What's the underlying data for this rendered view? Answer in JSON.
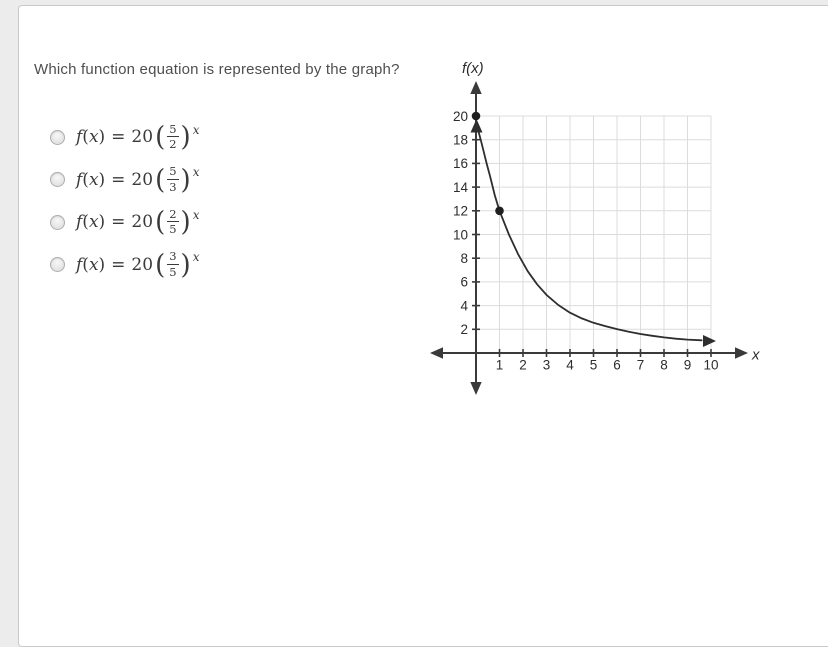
{
  "page": {
    "background_color": "#ececec",
    "card_background": "#ffffff",
    "card_border_color": "#c9c9c9"
  },
  "question": {
    "text": "Which function equation is represented by the graph?"
  },
  "equation_shared": {
    "f": "f",
    "open_paren": "(",
    "variable": "x",
    "close_paren": ")",
    "equals": "=",
    "coefficient": "20"
  },
  "options": [
    {
      "numerator": "5",
      "denominator": "2",
      "exponent": "x",
      "text": "f(x) = 20(5/2)^x",
      "selected": false
    },
    {
      "numerator": "5",
      "denominator": "3",
      "exponent": "x",
      "text": "f(x) = 20(5/3)^x",
      "selected": false
    },
    {
      "numerator": "2",
      "denominator": "5",
      "exponent": "x",
      "text": "f(x) = 20(2/5)^x",
      "selected": false
    },
    {
      "numerator": "3",
      "denominator": "5",
      "exponent": "x",
      "text": "f(x) = 20(3/5)^x",
      "selected": false
    }
  ],
  "chart_data": {
    "type": "line",
    "description": "Decreasing exponential decay curve with marked points at (0, 20) and (1, 12); curve approaches the x-axis as x increases, with arrowheads on both curve ends",
    "xlabel": "x",
    "ylabel": "f(x)",
    "xlim": [
      0,
      10
    ],
    "ylim": [
      0,
      20
    ],
    "x_ticks": [
      1,
      2,
      3,
      4,
      5,
      6,
      7,
      8,
      9,
      10
    ],
    "y_ticks": [
      2,
      4,
      6,
      8,
      10,
      12,
      14,
      16,
      18,
      20
    ],
    "grid": true,
    "marked_points": [
      [
        0,
        20
      ],
      [
        1,
        12
      ]
    ],
    "curve_samples": [
      [
        0.12,
        18.6
      ],
      [
        0.2,
        18.0
      ],
      [
        0.3,
        17.2
      ],
      [
        0.45,
        16.0
      ],
      [
        0.6,
        14.9
      ],
      [
        0.8,
        13.3
      ],
      [
        1,
        12
      ],
      [
        1.4,
        10.0
      ],
      [
        1.8,
        8.3
      ],
      [
        2.2,
        6.9
      ],
      [
        2.6,
        5.8
      ],
      [
        3,
        4.9
      ],
      [
        3.5,
        4.05
      ],
      [
        4,
        3.4
      ],
      [
        4.5,
        2.92
      ],
      [
        5,
        2.55
      ],
      [
        5.5,
        2.27
      ],
      [
        6,
        2.02
      ],
      [
        6.5,
        1.8
      ],
      [
        7,
        1.6
      ],
      [
        7.5,
        1.45
      ],
      [
        8,
        1.32
      ],
      [
        8.5,
        1.21
      ],
      [
        9,
        1.13
      ],
      [
        9.6,
        1.07
      ]
    ],
    "colors": {
      "axis": "#3a3a3a",
      "grid": "#dcdcdc",
      "curve": "#2e2e2e",
      "point": "#1f1f1f",
      "tick_label": "#2d2d2d"
    }
  }
}
